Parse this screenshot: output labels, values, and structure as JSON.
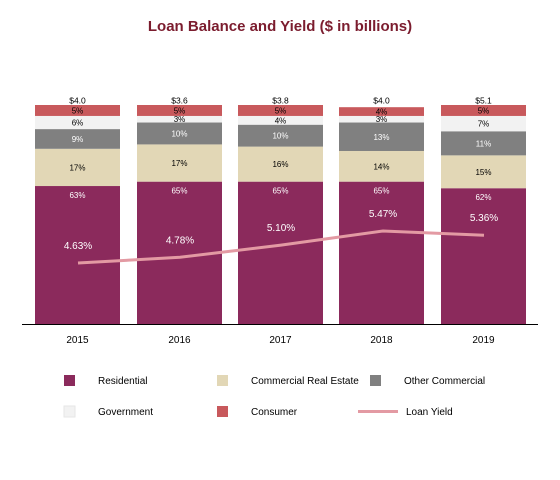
{
  "chart_data": {
    "type": "bar",
    "title": "Loan Balance and Yield ($ in billions)",
    "categories": [
      "2015",
      "2016",
      "2017",
      "2018",
      "2019"
    ],
    "totals": [
      "$4.0",
      "$3.6",
      "$3.8",
      "$4.0",
      "$5.1"
    ],
    "series": [
      {
        "name": "Residential",
        "values": [
          63,
          65,
          65,
          65,
          62
        ],
        "labels": [
          "63%",
          "65%",
          "65%",
          "65%",
          "62%"
        ],
        "color": "#8b2a5c"
      },
      {
        "name": "Commercial Real Estate",
        "values": [
          17,
          17,
          16,
          14,
          15
        ],
        "labels": [
          "17%",
          "17%",
          "16%",
          "14%",
          "15%"
        ],
        "color": "#e2d7b6"
      },
      {
        "name": "Other Commercial",
        "values": [
          9,
          10,
          10,
          13,
          11
        ],
        "labels": [
          "9%",
          "10%",
          "10%",
          "13%",
          "11%"
        ],
        "color": "#808080"
      },
      {
        "name": "Government",
        "values": [
          6,
          3,
          4,
          3,
          7
        ],
        "labels": [
          "6%",
          "3%",
          "4%",
          "3%",
          "7%"
        ],
        "color": "#f2f2f2"
      },
      {
        "name": "Consumer",
        "values": [
          5,
          5,
          5,
          4,
          5
        ],
        "labels": [
          "5%",
          "5%",
          "5%",
          "4%",
          "5%"
        ],
        "color": "#c8595c"
      }
    ],
    "line_series": {
      "name": "Loan Yield",
      "values": [
        4.63,
        4.78,
        5.1,
        5.47,
        5.36
      ],
      "labels": [
        "4.63%",
        "4.78%",
        "5.10%",
        "5.47%",
        "5.36%"
      ],
      "color": "#e39aa3"
    },
    "legend_position": "bottom",
    "grid": false,
    "colors": {
      "title": "#7b1c2e"
    }
  }
}
